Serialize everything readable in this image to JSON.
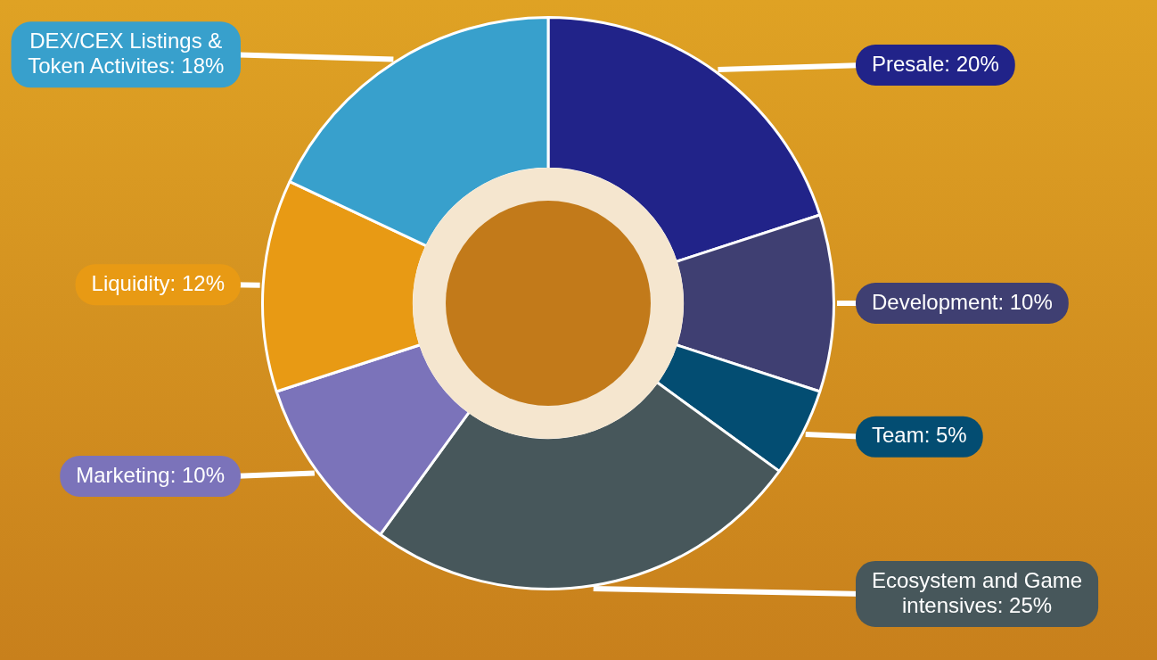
{
  "chart_data": {
    "type": "donut",
    "categories": [
      "Presale: 20%",
      "Development: 10%",
      "Team: 5%",
      "Ecosystem and Game intensives: 25%",
      "Marketing: 10%",
      "Liquidity: 12%",
      "DEX/CEX Listings & Token Activites: 18%"
    ],
    "values": [
      20,
      10,
      5,
      25,
      10,
      12,
      18
    ],
    "colors": [
      "#212389",
      "#3f3f72",
      "#034d72",
      "#47575b",
      "#7b73ba",
      "#e89a14",
      "#38a0cc"
    ]
  }
}
